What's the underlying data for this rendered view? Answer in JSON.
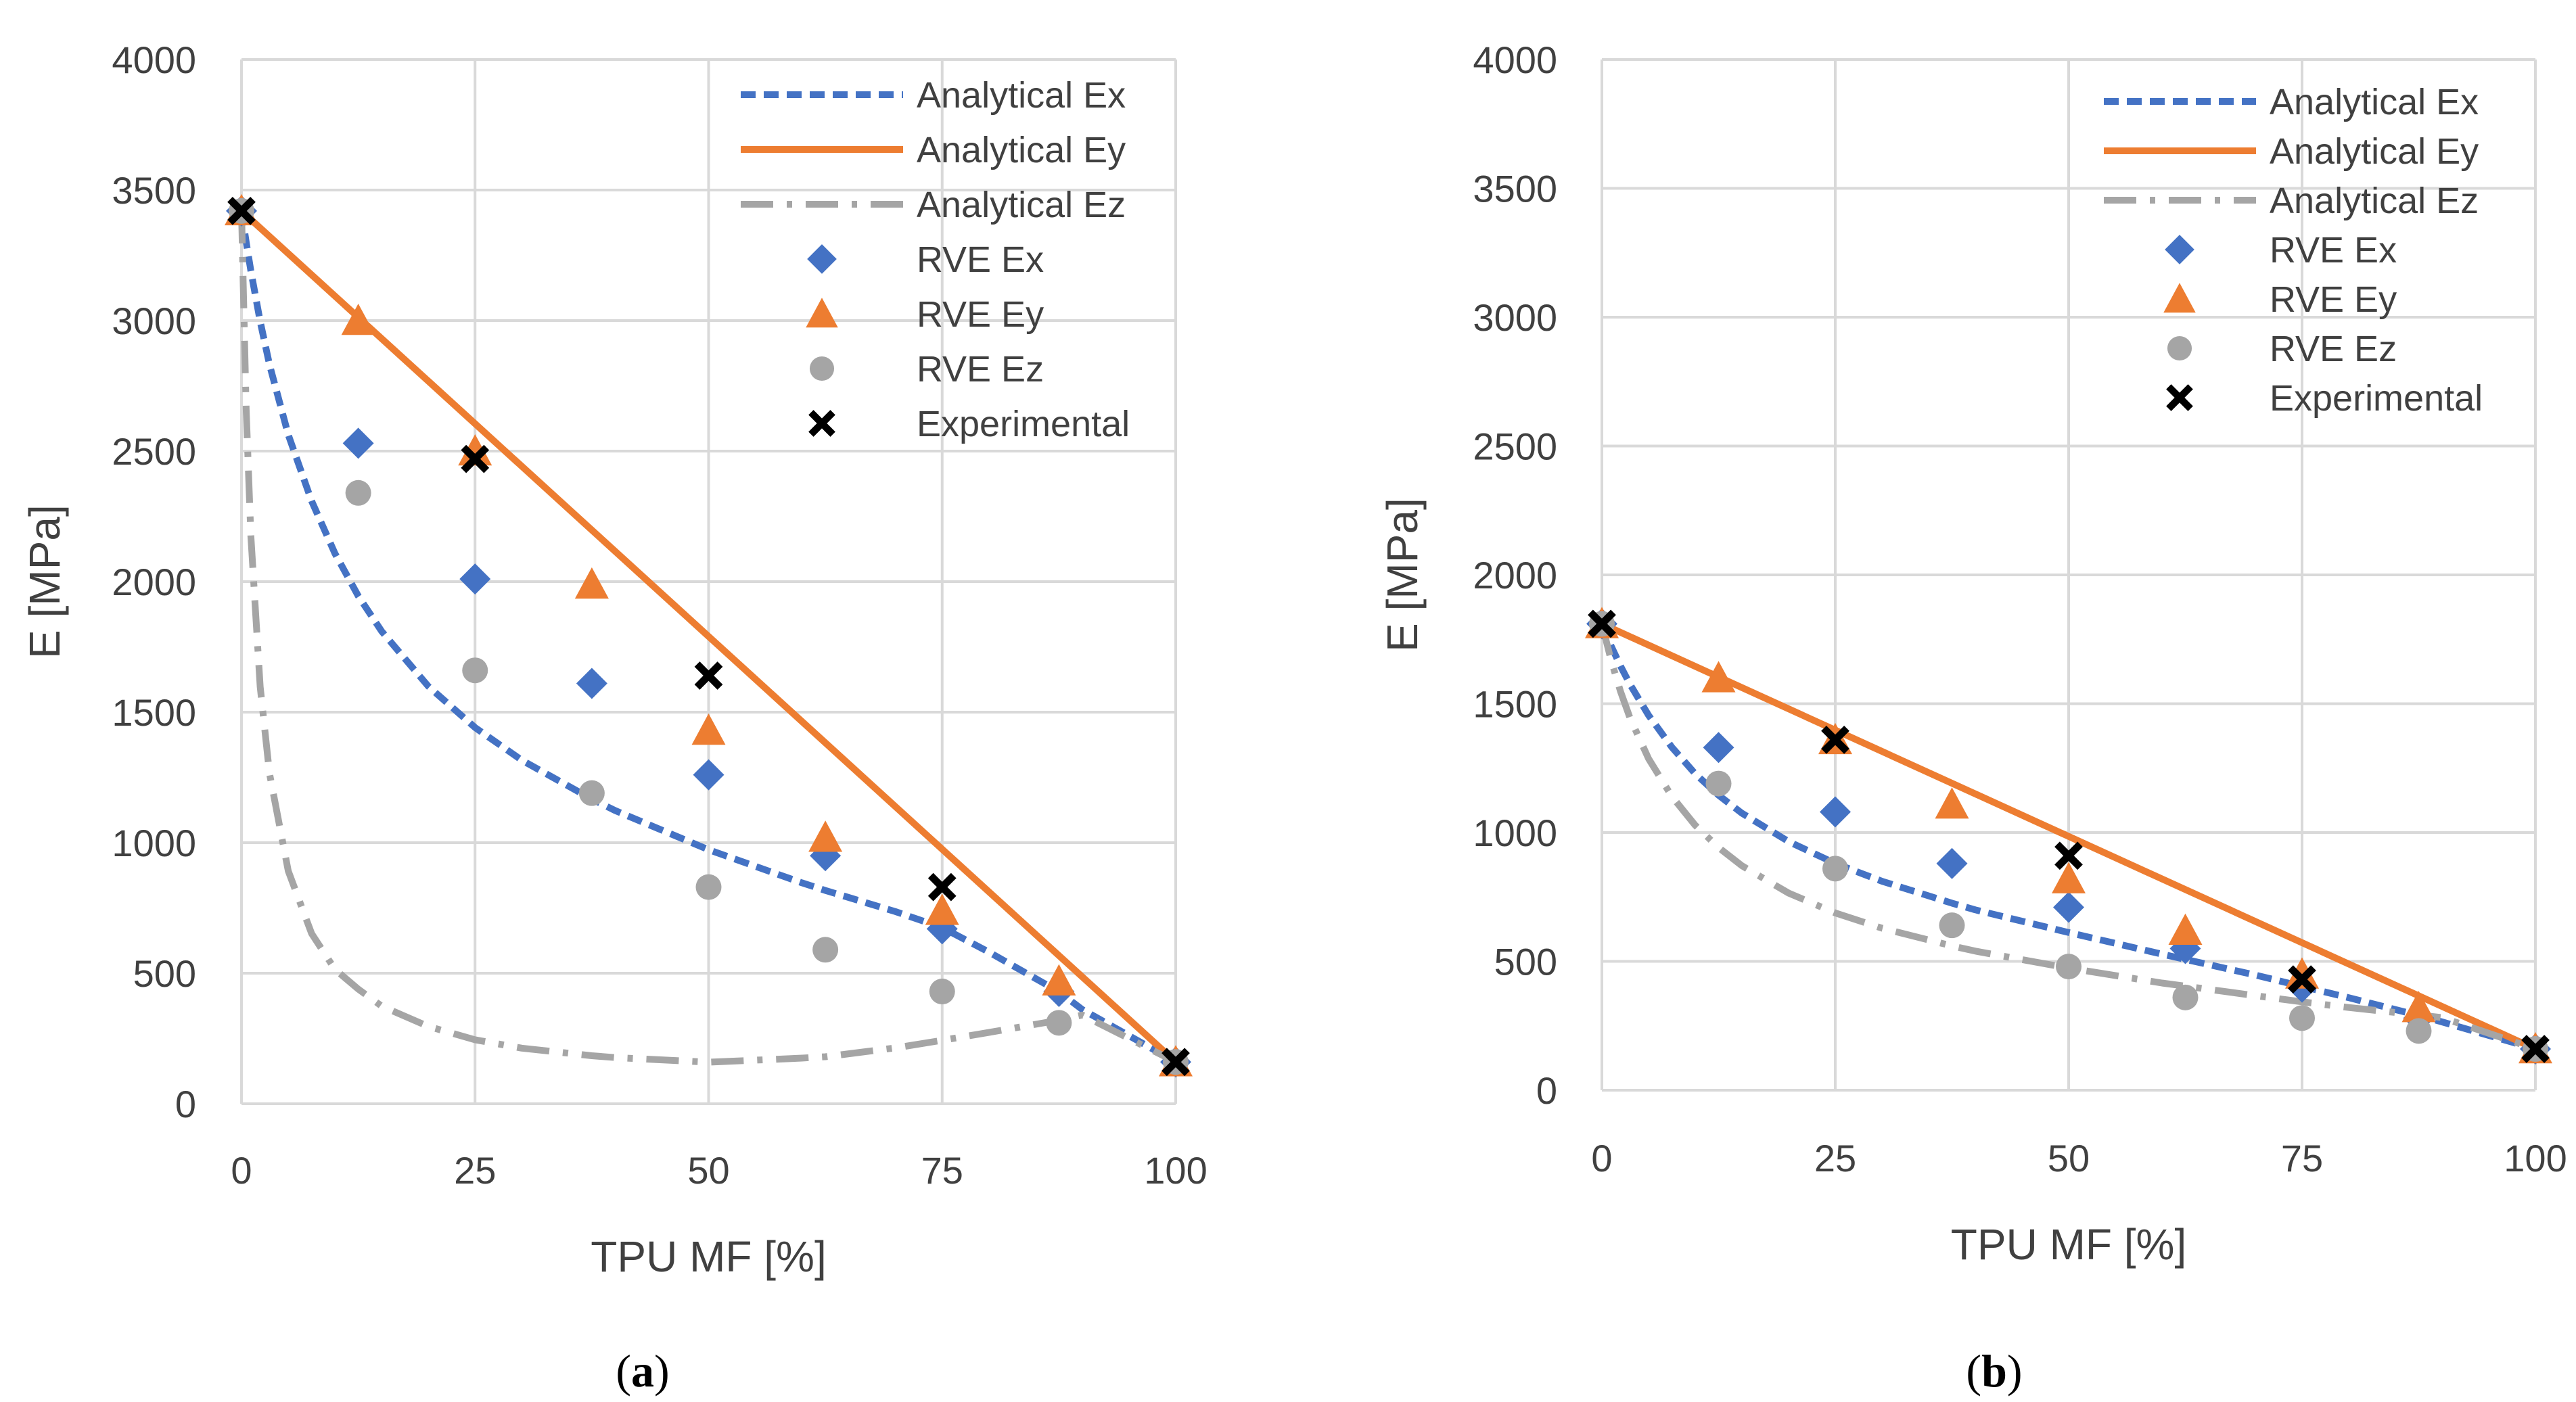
{
  "colors": {
    "ex": "#4472C4",
    "ey": "#ED7D31",
    "ez": "#A5A5A5",
    "experimental": "#000000",
    "grid": "#D9D9D9",
    "text": "#404040"
  },
  "chart_data": [
    {
      "type": "line",
      "panel": "a",
      "caption": {
        "open": "(",
        "letter": "a",
        "close": ")"
      },
      "xlabel": "TPU MF [%]",
      "ylabel": "E [MPa]",
      "xlim": [
        0,
        100
      ],
      "ylim": [
        0,
        4000
      ],
      "xticks": [
        0,
        25,
        50,
        75,
        100
      ],
      "yticks": [
        0,
        500,
        1000,
        1500,
        2000,
        2500,
        3000,
        3500,
        4000
      ],
      "grid": true,
      "legend_position": "top-right",
      "series": [
        {
          "name": "Analytical Ex",
          "kind": "line",
          "style": "dashed",
          "color_key": "ex",
          "x": [
            0,
            0.5,
            1,
            2,
            3,
            5,
            7.5,
            10,
            12.5,
            15,
            20,
            25,
            30,
            37.5,
            40,
            50,
            60,
            62.5,
            70,
            75,
            80,
            87.5,
            90,
            100
          ],
          "y": [
            3420,
            3301,
            3191,
            2997,
            2831,
            2563,
            2309,
            2108,
            1945,
            1810,
            1599,
            1441,
            1316,
            1167,
            1123,
            973,
            846,
            817,
            736,
            675,
            581,
            429,
            361,
            160
          ]
        },
        {
          "name": "Analytical Ey",
          "kind": "line",
          "style": "solid",
          "color_key": "ey",
          "x": [
            0,
            100
          ],
          "y": [
            3420,
            160
          ]
        },
        {
          "name": "Analytical Ez",
          "kind": "line",
          "style": "dashdot",
          "color_key": "ez",
          "x": [
            0,
            0.5,
            1,
            2,
            3,
            5,
            7.5,
            10,
            12.5,
            15,
            20,
            25,
            30,
            37.5,
            40,
            50,
            60,
            62.5,
            70,
            75,
            80,
            87.5,
            90,
            100
          ],
          "y": [
            3420,
            2660,
            2177,
            1598,
            1265,
            892,
            652,
            515,
            439,
            374,
            296,
            245,
            213,
            184,
            177,
            159,
            175,
            180,
            214,
            243,
            273,
            320,
            340,
            160
          ]
        },
        {
          "name": "RVE Ex",
          "kind": "marker",
          "marker": "diamond",
          "color_key": "ex",
          "x": [
            0,
            12.5,
            25,
            37.5,
            50,
            62.5,
            75,
            87.5,
            100
          ],
          "y": [
            3420,
            2530,
            2010,
            1610,
            1260,
            950,
            670,
            430,
            160
          ]
        },
        {
          "name": "RVE Ey",
          "kind": "marker",
          "marker": "triangle",
          "color_key": "ey",
          "x": [
            0,
            12.5,
            25,
            37.5,
            50,
            62.5,
            75,
            87.5,
            100
          ],
          "y": [
            3420,
            3000,
            2500,
            1990,
            1430,
            1020,
            740,
            470,
            160
          ]
        },
        {
          "name": "RVE Ez",
          "kind": "marker",
          "marker": "circle",
          "color_key": "ez",
          "x": [
            0,
            12.5,
            25,
            37.5,
            50,
            62.5,
            75,
            87.5,
            100
          ],
          "y": [
            3420,
            2340,
            1660,
            1190,
            830,
            590,
            430,
            310,
            160
          ]
        },
        {
          "name": "Experimental",
          "kind": "marker",
          "marker": "x",
          "color_key": "experimental",
          "x": [
            0,
            25,
            50,
            75,
            100
          ],
          "y": [
            3420,
            2470,
            1640,
            830,
            160
          ]
        }
      ]
    },
    {
      "type": "line",
      "panel": "b",
      "caption": {
        "open": "(",
        "letter": "b",
        "close": ")"
      },
      "xlabel": "TPU MF [%]",
      "ylabel": "E [MPa]",
      "xlim": [
        0,
        100
      ],
      "ylim": [
        0,
        4000
      ],
      "xticks": [
        0,
        25,
        50,
        75,
        100
      ],
      "yticks": [
        0,
        500,
        1000,
        1500,
        2000,
        2500,
        3000,
        3500,
        4000
      ],
      "grid": true,
      "legend_position": "top-right",
      "series": [
        {
          "name": "Analytical Ex",
          "kind": "line",
          "style": "dashed",
          "color_key": "ex",
          "x": [
            0,
            1,
            2,
            3,
            5,
            7.5,
            10,
            12.5,
            15,
            20,
            25,
            30,
            37.5,
            40,
            50,
            60,
            62.5,
            70,
            75,
            80,
            87.5,
            90,
            100
          ],
          "y": [
            1810,
            1723,
            1646,
            1576,
            1455,
            1331,
            1228,
            1145,
            1075,
            965,
            880,
            811,
            726,
            700,
            612,
            528,
            508,
            447,
            403,
            359,
            290,
            265,
            160
          ]
        },
        {
          "name": "Analytical Ey",
          "kind": "line",
          "style": "solid",
          "color_key": "ey",
          "x": [
            0,
            100
          ],
          "y": [
            1810,
            160
          ]
        },
        {
          "name": "Analytical Ez",
          "kind": "line",
          "style": "dashdot",
          "color_key": "ez",
          "x": [
            0,
            1,
            2,
            3,
            5,
            7.5,
            10,
            12.5,
            15,
            20,
            25,
            30,
            37.5,
            40,
            50,
            60,
            62.5,
            70,
            75,
            80,
            87.5,
            90,
            100
          ],
          "y": [
            1810,
            1667,
            1547,
            1446,
            1287,
            1140,
            1028,
            942,
            871,
            765,
            688,
            629,
            560,
            540,
            474,
            416,
            404,
            367,
            343,
            321,
            292,
            282,
            160
          ]
        },
        {
          "name": "RVE Ex",
          "kind": "marker",
          "marker": "diamond",
          "color_key": "ex",
          "x": [
            0,
            12.5,
            25,
            37.5,
            50,
            62.5,
            75,
            87.5,
            100
          ],
          "y": [
            1810,
            1330,
            1080,
            880,
            710,
            550,
            400,
            280,
            160
          ]
        },
        {
          "name": "RVE Ey",
          "kind": "marker",
          "marker": "triangle",
          "color_key": "ey",
          "x": [
            0,
            12.5,
            25,
            37.5,
            50,
            62.5,
            75,
            87.5,
            100
          ],
          "y": [
            1810,
            1600,
            1360,
            1110,
            820,
            620,
            450,
            320,
            160
          ]
        },
        {
          "name": "RVE Ez",
          "kind": "marker",
          "marker": "circle",
          "color_key": "ez",
          "x": [
            0,
            12.5,
            25,
            37.5,
            50,
            62.5,
            75,
            87.5,
            100
          ],
          "y": [
            1810,
            1190,
            860,
            640,
            480,
            360,
            280,
            230,
            160
          ]
        },
        {
          "name": "Experimental",
          "kind": "marker",
          "marker": "x",
          "color_key": "experimental",
          "x": [
            0,
            25,
            50,
            75,
            100
          ],
          "y": [
            1810,
            1360,
            910,
            430,
            160
          ]
        }
      ]
    }
  ]
}
